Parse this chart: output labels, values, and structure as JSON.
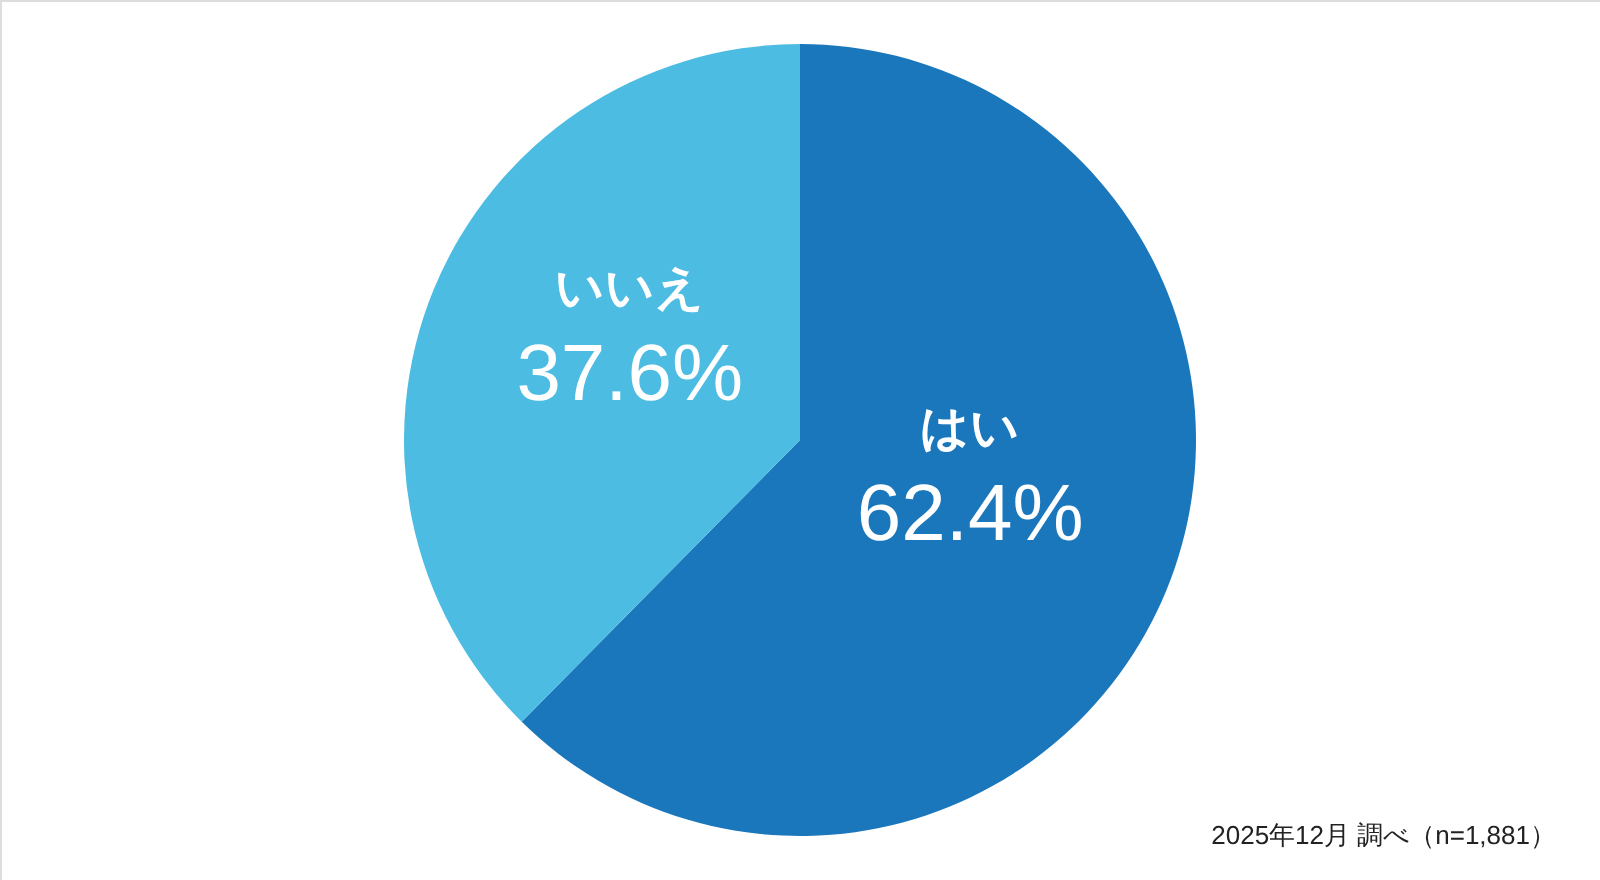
{
  "chart_data": {
    "type": "pie",
    "categories": [
      "はい",
      "いいえ"
    ],
    "values": [
      62.4,
      37.6
    ],
    "colors": [
      "#1b77bc",
      "#4cbce3"
    ],
    "value_labels": [
      "62.4%",
      "37.6%"
    ],
    "annotations": [
      "2025年12月 調べ（n=1,881）"
    ]
  }
}
